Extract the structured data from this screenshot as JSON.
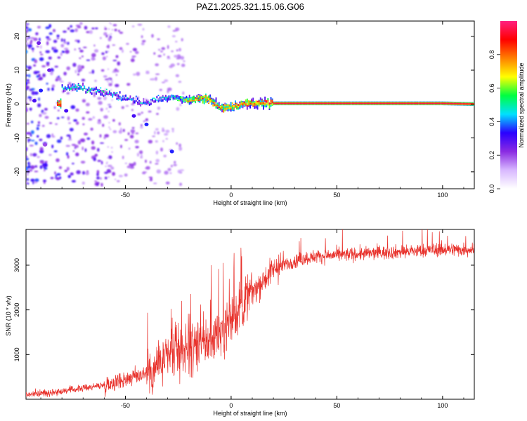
{
  "title": "PAZ1.2025.321.15.06.G06",
  "chart_data": [
    {
      "type": "heatmap",
      "name": "spectrogram",
      "xlabel": "Height of straight line (km)",
      "ylabel": "Frequency (Hz)",
      "xlim": [
        -97,
        115
      ],
      "ylim": [
        -25,
        24.5
      ],
      "xticks": [
        -50,
        0,
        50,
        100
      ],
      "yticks": [
        20,
        10,
        0,
        -10,
        -20
      ],
      "colorbar": {
        "label": "Normalized spectral amplitude",
        "range": [
          0,
          1
        ],
        "ticks": [
          0.0,
          0.2,
          0.4,
          0.6,
          0.8
        ],
        "colors": [
          "#ffffff",
          "#d8b8ff",
          "#8a2be2",
          "#2a00ff",
          "#00e0ff",
          "#00ff40",
          "#ffff00",
          "#ff8000",
          "#ff0000",
          "#ff2080"
        ]
      },
      "ridge": [
        {
          "x": -80,
          "f": 4.6,
          "a": 0.45
        },
        {
          "x": -73,
          "f": 4.8,
          "a": 0.5
        },
        {
          "x": -66,
          "f": 4.2,
          "a": 0.45
        },
        {
          "x": -58,
          "f": 3.2,
          "a": 0.45
        },
        {
          "x": -50,
          "f": 2.0,
          "a": 0.42
        },
        {
          "x": -42,
          "f": 0.2,
          "a": 0.4
        },
        {
          "x": -34,
          "f": 1.5,
          "a": 0.45
        },
        {
          "x": -26,
          "f": 1.8,
          "a": 0.5
        },
        {
          "x": -20,
          "f": 1.0,
          "a": 0.75
        },
        {
          "x": -14,
          "f": 1.6,
          "a": 0.8
        },
        {
          "x": -10,
          "f": 1.6,
          "a": 0.8
        },
        {
          "x": -5,
          "f": -1.0,
          "a": 0.8
        },
        {
          "x": 0,
          "f": -0.8,
          "a": 0.8
        },
        {
          "x": 6,
          "f": 0.0,
          "a": 0.85
        },
        {
          "x": 14,
          "f": 0.4,
          "a": 0.85
        },
        {
          "x": 20,
          "f": 0.2,
          "a": 0.95
        },
        {
          "x": 40,
          "f": 0.2,
          "a": 0.95
        },
        {
          "x": 60,
          "f": 0.2,
          "a": 0.95
        },
        {
          "x": 80,
          "f": 0.2,
          "a": 0.95
        },
        {
          "x": 100,
          "f": 0.2,
          "a": 0.95
        },
        {
          "x": 115,
          "f": 0.0,
          "a": 0.95
        }
      ],
      "spots": [
        {
          "x": -28,
          "f": -14,
          "a": 0.35
        },
        {
          "x": -40,
          "f": -6,
          "a": 0.35
        },
        {
          "x": -46,
          "f": -3.5,
          "a": 0.3
        },
        {
          "x": -90,
          "f": 4,
          "a": 0.35
        },
        {
          "x": -93,
          "f": 1,
          "a": 0.3
        },
        {
          "x": -86,
          "f": 10,
          "a": 0.25
        },
        {
          "x": -78,
          "f": -2,
          "a": 0.3
        },
        {
          "x": -88,
          "f": -12,
          "a": 0.2
        },
        {
          "x": -91,
          "f": 18,
          "a": 0.25
        }
      ]
    },
    {
      "type": "line",
      "name": "snr",
      "xlabel": "Height of straight line (km)",
      "ylabel": "SNR (10 * v/v)",
      "xlim": [
        -97,
        115
      ],
      "ylim": [
        0,
        3800
      ],
      "xticks": [
        -50,
        0,
        50,
        100
      ],
      "yticks": [
        1000,
        2000,
        3000
      ],
      "color": "#e8312b",
      "series": [
        {
          "name": "SNR",
          "trend_x": [
            -97,
            -80,
            -60,
            -50,
            -40,
            -35,
            -30,
            -25,
            -20,
            -15,
            -10,
            -5,
            0,
            5,
            10,
            20,
            30,
            40,
            60,
            80,
            100,
            115
          ],
          "trend_y": [
            100,
            180,
            320,
            450,
            600,
            750,
            900,
            1050,
            1150,
            1200,
            1300,
            1500,
            1800,
            2100,
            2400,
            2900,
            3100,
            3200,
            3250,
            3300,
            3350,
            3350
          ]
        }
      ]
    }
  ]
}
